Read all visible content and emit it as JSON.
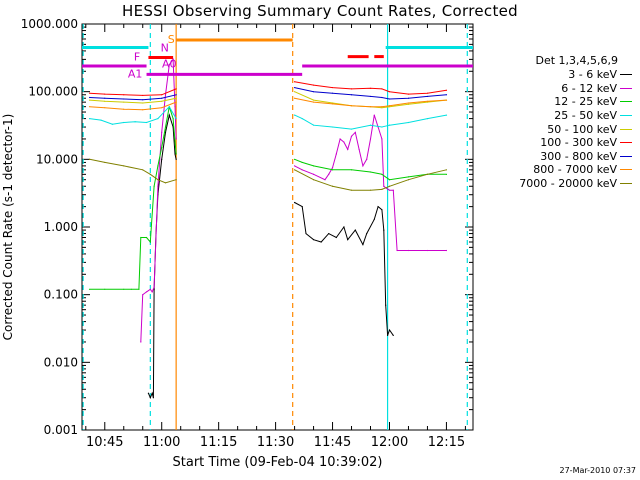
{
  "window": {
    "timestamp": "27-Mar-2010 07:37"
  },
  "chart_data": {
    "type": "line",
    "title": "HESSI Observing Summary Count Rates, Corrected",
    "xlabel": "Start Time (09-Feb-04 10:39:02)",
    "ylabel": "Corrected Count Rate (s-1 detector-1)",
    "y_scale": "log",
    "ylim": [
      0.001,
      1000
    ],
    "xlim_minutes": [
      639,
      742
    ],
    "x_ticks": [
      {
        "label": "10:45",
        "minutes": 645
      },
      {
        "label": "11:00",
        "minutes": 660
      },
      {
        "label": "11:15",
        "minutes": 675
      },
      {
        "label": "11:30",
        "minutes": 690
      },
      {
        "label": "11:45",
        "minutes": 705
      },
      {
        "label": "12:00",
        "minutes": 720
      },
      {
        "label": "12:15",
        "minutes": 735
      }
    ],
    "y_ticks": [
      {
        "label": "0.001",
        "value": 0.001
      },
      {
        "label": "0.010",
        "value": 0.01
      },
      {
        "label": "0.100",
        "value": 0.1
      },
      {
        "label": "1.000",
        "value": 1
      },
      {
        "label": "10.000",
        "value": 10
      },
      {
        "label": "100.000",
        "value": 100
      },
      {
        "label": "1000.000",
        "value": 1000
      }
    ],
    "legend_title": "Det 1,3,4,5,6,9",
    "legend_position": "right",
    "series": [
      {
        "name": "3 - 6 keV",
        "color": "#000000",
        "points": [
          [
            656.5,
            0.0035
          ],
          [
            657,
            0.003
          ],
          [
            657.5,
            0.0035
          ],
          [
            657.8,
            0.003
          ],
          [
            658,
            0.12
          ],
          [
            658.5,
            0.8
          ],
          [
            659,
            3
          ],
          [
            660,
            10
          ],
          [
            661,
            25
          ],
          [
            662,
            45
          ],
          [
            663,
            30
          ],
          [
            663.5,
            12
          ],
          [
            663.8,
            10
          ],
          [
            695,
            2.3
          ],
          [
            697,
            2
          ],
          [
            698,
            0.8
          ],
          [
            700,
            0.65
          ],
          [
            702,
            0.6
          ],
          [
            704,
            0.8
          ],
          [
            706,
            0.7
          ],
          [
            708,
            1
          ],
          [
            709,
            0.65
          ],
          [
            711,
            0.9
          ],
          [
            713,
            0.55
          ],
          [
            714,
            0.8
          ],
          [
            716,
            1.3
          ],
          [
            717,
            2
          ],
          [
            718,
            1.8
          ],
          [
            718.5,
            0.9
          ],
          [
            719,
            0.07
          ],
          [
            719.5,
            0.025
          ],
          [
            720,
            0.03
          ],
          [
            721,
            0.025
          ]
        ]
      },
      {
        "name": "6 - 12 keV",
        "color": "#cc00cc",
        "points": [
          [
            654.5,
            0.02
          ],
          [
            655,
            0.1
          ],
          [
            656,
            0.11
          ],
          [
            657,
            0.12
          ],
          [
            657.5,
            0.11
          ],
          [
            658,
            0.13
          ],
          [
            659,
            4
          ],
          [
            660,
            25
          ],
          [
            661,
            90
          ],
          [
            662,
            250
          ],
          [
            663,
            300
          ],
          [
            663.5,
            60
          ],
          [
            663.8,
            20
          ],
          [
            695,
            8
          ],
          [
            697,
            7
          ],
          [
            700,
            6
          ],
          [
            703,
            5
          ],
          [
            704,
            6
          ],
          [
            705,
            7.5
          ],
          [
            706,
            12
          ],
          [
            707,
            20
          ],
          [
            708,
            18
          ],
          [
            709,
            14
          ],
          [
            710,
            22
          ],
          [
            711,
            25
          ],
          [
            712,
            14
          ],
          [
            713,
            8
          ],
          [
            714,
            10
          ],
          [
            715,
            20
          ],
          [
            716,
            45
          ],
          [
            717,
            30
          ],
          [
            718,
            20
          ],
          [
            718.5,
            4
          ],
          [
            719,
            3.8
          ],
          [
            720,
            3.5
          ],
          [
            721,
            3.5
          ],
          [
            722,
            0.45
          ],
          [
            725,
            0.45
          ],
          [
            730,
            0.45
          ],
          [
            735,
            0.45
          ]
        ]
      },
      {
        "name": "12 - 25 keV",
        "color": "#00cc00",
        "points": [
          [
            641,
            0.12
          ],
          [
            645,
            0.12
          ],
          [
            650,
            0.12
          ],
          [
            652,
            0.12
          ],
          [
            654,
            0.12
          ],
          [
            654.5,
            0.7
          ],
          [
            656,
            0.7
          ],
          [
            657,
            0.6
          ],
          [
            658,
            4
          ],
          [
            659,
            8
          ],
          [
            660,
            15
          ],
          [
            661,
            30
          ],
          [
            662,
            60
          ],
          [
            663,
            40
          ],
          [
            663.8,
            12
          ],
          [
            695,
            10
          ],
          [
            697,
            9
          ],
          [
            700,
            8
          ],
          [
            705,
            7
          ],
          [
            710,
            7
          ],
          [
            715,
            6.5
          ],
          [
            718,
            6
          ],
          [
            720,
            5
          ],
          [
            725,
            5.5
          ],
          [
            730,
            6
          ],
          [
            735,
            6
          ]
        ]
      },
      {
        "name": "25 - 50 keV",
        "color": "#00e0e0",
        "points": [
          [
            641,
            40
          ],
          [
            644,
            38
          ],
          [
            647,
            33
          ],
          [
            650,
            35
          ],
          [
            653,
            36
          ],
          [
            656,
            35
          ],
          [
            659,
            40
          ],
          [
            662,
            60
          ],
          [
            663.8,
            40
          ],
          [
            695,
            45
          ],
          [
            697,
            40
          ],
          [
            700,
            32
          ],
          [
            705,
            30
          ],
          [
            710,
            28
          ],
          [
            715,
            32
          ],
          [
            718,
            30
          ],
          [
            720,
            32
          ],
          [
            725,
            35
          ],
          [
            730,
            40
          ],
          [
            735,
            45
          ]
        ]
      },
      {
        "name": "50 - 100 keV",
        "color": "#cccc00",
        "points": [
          [
            641,
            75
          ],
          [
            645,
            72
          ],
          [
            650,
            70
          ],
          [
            655,
            68
          ],
          [
            660,
            72
          ],
          [
            663.8,
            80
          ],
          [
            695,
            100
          ],
          [
            700,
            75
          ],
          [
            705,
            68
          ],
          [
            710,
            62
          ],
          [
            715,
            60
          ],
          [
            718,
            58
          ],
          [
            720,
            60
          ],
          [
            725,
            65
          ],
          [
            730,
            70
          ],
          [
            735,
            75
          ]
        ]
      },
      {
        "name": "100 - 300 keV",
        "color": "#ff0000",
        "points": [
          [
            641,
            95
          ],
          [
            645,
            92
          ],
          [
            650,
            90
          ],
          [
            655,
            88
          ],
          [
            660,
            90
          ],
          [
            663.8,
            110
          ],
          [
            695,
            140
          ],
          [
            700,
            125
          ],
          [
            705,
            115
          ],
          [
            710,
            110
          ],
          [
            715,
            112
          ],
          [
            718,
            110
          ],
          [
            720,
            100
          ],
          [
            725,
            92
          ],
          [
            730,
            95
          ],
          [
            735,
            105
          ]
        ]
      },
      {
        "name": "300 - 800 keV",
        "color": "#0000cc",
        "points": [
          [
            641,
            82
          ],
          [
            645,
            80
          ],
          [
            650,
            78
          ],
          [
            655,
            76
          ],
          [
            660,
            80
          ],
          [
            663.8,
            90
          ],
          [
            695,
            115
          ],
          [
            700,
            100
          ],
          [
            705,
            95
          ],
          [
            710,
            90
          ],
          [
            715,
            85
          ],
          [
            718,
            82
          ],
          [
            720,
            78
          ],
          [
            725,
            80
          ],
          [
            730,
            85
          ],
          [
            735,
            90
          ]
        ]
      },
      {
        "name": "800 - 7000 keV",
        "color": "#ff8800",
        "points": [
          [
            641,
            60
          ],
          [
            645,
            58
          ],
          [
            650,
            55
          ],
          [
            655,
            54
          ],
          [
            660,
            58
          ],
          [
            663.8,
            70
          ],
          [
            695,
            80
          ],
          [
            700,
            70
          ],
          [
            705,
            66
          ],
          [
            710,
            62
          ],
          [
            715,
            60
          ],
          [
            718,
            60
          ],
          [
            720,
            62
          ],
          [
            725,
            68
          ],
          [
            730,
            72
          ],
          [
            735,
            75
          ]
        ]
      },
      {
        "name": "7000 - 20000 keV",
        "color": "#808000",
        "points": [
          [
            641,
            10
          ],
          [
            645,
            9
          ],
          [
            650,
            8
          ],
          [
            655,
            7
          ],
          [
            657,
            6
          ],
          [
            659,
            5
          ],
          [
            661,
            4.5
          ],
          [
            663.8,
            5
          ],
          [
            695,
            7
          ],
          [
            700,
            5
          ],
          [
            705,
            4
          ],
          [
            710,
            3.5
          ],
          [
            715,
            3.5
          ],
          [
            718,
            3.6
          ],
          [
            720,
            4
          ],
          [
            725,
            5
          ],
          [
            730,
            6
          ],
          [
            735,
            7
          ]
        ]
      }
    ],
    "annotations": [
      {
        "text": "S",
        "color": "#ff8800",
        "minutes": 662.5,
        "value": 600
      },
      {
        "text": "F",
        "color": "#cc00cc",
        "minutes": 653.5,
        "value": 330
      },
      {
        "text": "N",
        "color": "#cc00cc",
        "minutes": 660.8,
        "value": 450
      },
      {
        "text": "A0",
        "color": "#cc00cc",
        "minutes": 662,
        "value": 260
      },
      {
        "text": "A1",
        "color": "#cc00cc",
        "minutes": 653,
        "value": 185
      }
    ],
    "state_bars": [
      {
        "color": "#00e0e0",
        "from": 639,
        "to": 656.5,
        "value": 450
      },
      {
        "color": "#00e0e0",
        "from": 719,
        "to": 742,
        "value": 450
      },
      {
        "color": "#ff8800",
        "from": 663.8,
        "to": 694.5,
        "value": 580
      },
      {
        "color": "#ff0000",
        "from": 656.5,
        "to": 663,
        "value": 320
      },
      {
        "color": "#ff0000",
        "from": 709,
        "to": 714.5,
        "value": 330
      },
      {
        "color": "#ff0000",
        "from": 716,
        "to": 718.5,
        "value": 330
      },
      {
        "color": "#cc00cc",
        "from": 639,
        "to": 656,
        "value": 240
      },
      {
        "color": "#cc00cc",
        "from": 656,
        "to": 697,
        "value": 180
      },
      {
        "color": "#cc00cc",
        "from": 697,
        "to": 742,
        "value": 240
      }
    ],
    "vlines": [
      {
        "color": "#00e0e0",
        "minutes": 657,
        "style": "dashed"
      },
      {
        "color": "#ff8800",
        "minutes": 663.8,
        "style": "solid"
      },
      {
        "color": "#ff8800",
        "minutes": 694.5,
        "style": "dashed"
      },
      {
        "color": "#00e0e0",
        "minutes": 719.5,
        "style": "solid"
      },
      {
        "color": "#00e0e0",
        "minutes": 740.5,
        "style": "dashed"
      },
      {
        "color": "#00e0e0",
        "minutes": 639.3,
        "style": "dashed"
      }
    ]
  }
}
